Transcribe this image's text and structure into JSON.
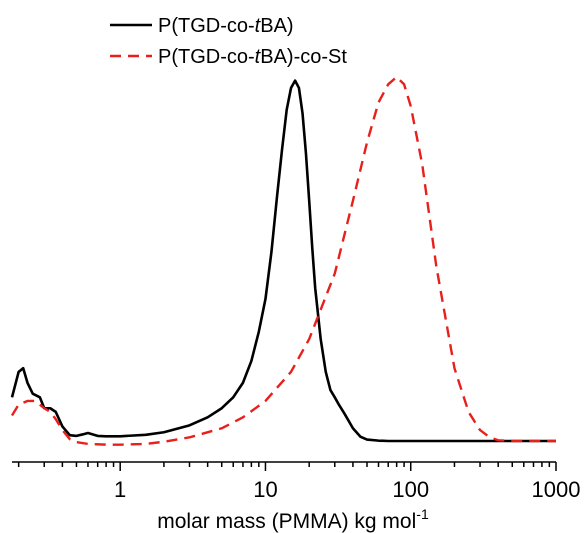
{
  "chart_data": {
    "type": "line",
    "xscale": "log",
    "xlim": [
      0.18,
      1000
    ],
    "ylim": [
      0,
      1
    ],
    "xlabel": "molar mass (PMMA) kg mol",
    "xlabel_superscript": "-1",
    "yaxis_visible": false,
    "grid": false,
    "legend_position": "top-left",
    "xticks": [
      1,
      10,
      100,
      1000
    ],
    "xtick_labels": [
      "1",
      "10",
      "100",
      "1000"
    ],
    "series": [
      {
        "name_parts": [
          "P(TGD-co-",
          "t",
          "BA)"
        ],
        "color": "#000000",
        "dash": "solid",
        "x": [
          0.18,
          0.2,
          0.215,
          0.23,
          0.25,
          0.28,
          0.3,
          0.33,
          0.36,
          0.4,
          0.45,
          0.5,
          0.55,
          0.6,
          0.7,
          0.8,
          1,
          1.5,
          2,
          3,
          4,
          5,
          6,
          7,
          8,
          9,
          10,
          11,
          12,
          13,
          14,
          15,
          16,
          17,
          18,
          19,
          20,
          21,
          22,
          24,
          26,
          28,
          30,
          32,
          35,
          40,
          45,
          50,
          60,
          70,
          80,
          100,
          1000
        ],
        "y": [
          0.12,
          0.19,
          0.2,
          0.16,
          0.13,
          0.12,
          0.09,
          0.09,
          0.08,
          0.04,
          0.016,
          0.014,
          0.018,
          0.022,
          0.014,
          0.013,
          0.013,
          0.017,
          0.024,
          0.043,
          0.065,
          0.09,
          0.12,
          0.16,
          0.22,
          0.3,
          0.39,
          0.52,
          0.67,
          0.8,
          0.91,
          0.97,
          0.99,
          0.97,
          0.9,
          0.79,
          0.66,
          0.53,
          0.42,
          0.28,
          0.19,
          0.14,
          0.12,
          0.1,
          0.075,
          0.035,
          0.012,
          0.004,
          0.001,
          0,
          0,
          0,
          0
        ]
      },
      {
        "name_parts": [
          "P(TGD-co-",
          "t",
          "BA)-co-St"
        ],
        "color": "#e8201c",
        "dash": "dashed",
        "x": [
          0.18,
          0.2,
          0.23,
          0.26,
          0.3,
          0.33,
          0.36,
          0.4,
          0.45,
          0.5,
          0.6,
          0.8,
          1,
          1.5,
          2,
          3,
          5,
          7,
          10,
          15,
          20,
          30,
          40,
          50,
          60,
          70,
          80,
          90,
          100,
          120,
          150,
          200,
          250,
          300,
          350,
          400,
          500,
          700,
          1000
        ],
        "y": [
          0.07,
          0.1,
          0.11,
          0.11,
          0.09,
          0.08,
          0.06,
          0.03,
          0.005,
          -0.003,
          -0.008,
          -0.01,
          -0.01,
          -0.008,
          -0.002,
          0.01,
          0.035,
          0.065,
          0.11,
          0.19,
          0.28,
          0.46,
          0.66,
          0.82,
          0.93,
          0.98,
          1.0,
          0.98,
          0.92,
          0.76,
          0.48,
          0.2,
          0.08,
          0.03,
          0.01,
          0.002,
          0,
          0,
          0
        ]
      }
    ]
  }
}
